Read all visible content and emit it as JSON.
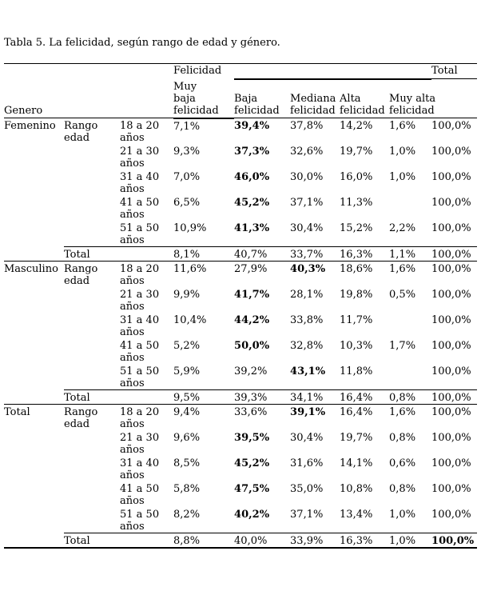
{
  "title": "Tabla 5. La felicidad, según rango de edad y género.",
  "table": {
    "group_header": "Felicidad",
    "total_header": "Total",
    "genero_header": "Genero",
    "columns": [
      "Muy\nbaja\nfelicidad",
      "Baja\nfelicidad",
      "Mediana\nfelicidad",
      "Alta\nfelicidad",
      "Muy alta\nfelicidad"
    ],
    "sections": [
      {
        "genero": "Femenino",
        "row_label": "Rango\nedad",
        "rows": [
          {
            "age": "18 a 20\naños",
            "values": [
              "7,1%",
              "39,4%",
              "37,8%",
              "14,2%",
              "1,6%",
              "100,0%"
            ],
            "bold": 1
          },
          {
            "age": "21 a 30\naños",
            "values": [
              "9,3%",
              "37,3%",
              "32,6%",
              "19,7%",
              "1,0%",
              "100,0%"
            ],
            "bold": 1
          },
          {
            "age": "31 a 40\naños",
            "values": [
              "7,0%",
              "46,0%",
              "30,0%",
              "16,0%",
              "1,0%",
              "100,0%"
            ],
            "bold": 1
          },
          {
            "age": "41 a 50\naños",
            "values": [
              "6,5%",
              "45,2%",
              "37,1%",
              "11,3%",
              "",
              "100,0%"
            ],
            "bold": 1
          },
          {
            "age": "51 a 50\naños",
            "values": [
              "10,9%",
              "41,3%",
              "30,4%",
              "15,2%",
              "2,2%",
              "100,0%"
            ],
            "bold": 1
          }
        ],
        "total": {
          "label": "Total",
          "values": [
            "8,1%",
            "40,7%",
            "33,7%",
            "16,3%",
            "1,1%",
            "100,0%"
          ],
          "bold": -1
        }
      },
      {
        "genero": "Masculino",
        "row_label": "Rango\nedad",
        "rows": [
          {
            "age": "18 a 20\naños",
            "values": [
              "11,6%",
              "27,9%",
              "40,3%",
              "18,6%",
              "1,6%",
              "100,0%"
            ],
            "bold": 2
          },
          {
            "age": "21 a 30\naños",
            "values": [
              "9,9%",
              "41,7%",
              "28,1%",
              "19,8%",
              "0,5%",
              "100,0%"
            ],
            "bold": 1
          },
          {
            "age": "31 a 40\naños",
            "values": [
              "10,4%",
              "44,2%",
              "33,8%",
              "11,7%",
              "",
              "100,0%"
            ],
            "bold": 1
          },
          {
            "age": "41 a 50\naños",
            "values": [
              "5,2%",
              "50,0%",
              "32,8%",
              "10,3%",
              "1,7%",
              "100,0%"
            ],
            "bold": 1
          },
          {
            "age": "51 a 50\naños",
            "values": [
              "5,9%",
              "39,2%",
              "43,1%",
              "11,8%",
              "",
              "100,0%"
            ],
            "bold": 2
          }
        ],
        "total": {
          "label": "Total",
          "values": [
            "9,5%",
            "39,3%",
            "34,1%",
            "16,4%",
            "0,8%",
            "100,0%"
          ],
          "bold": -1
        }
      },
      {
        "genero": "Total",
        "row_label": "Rango\nedad",
        "rows": [
          {
            "age": "18 a 20\naños",
            "values": [
              "9,4%",
              "33,6%",
              "39,1%",
              "16,4%",
              "1,6%",
              "100,0%"
            ],
            "bold": 2
          },
          {
            "age": "21 a 30\naños",
            "values": [
              "9,6%",
              "39,5%",
              "30,4%",
              "19,7%",
              "0,8%",
              "100,0%"
            ],
            "bold": 1
          },
          {
            "age": "31 a 40\naños",
            "values": [
              "8,5%",
              "45,2%",
              "31,6%",
              "14,1%",
              "0,6%",
              "100,0%"
            ],
            "bold": 1
          },
          {
            "age": "41 a 50\naños",
            "values": [
              "5,8%",
              "47,5%",
              "35,0%",
              "10,8%",
              "0,8%",
              "100,0%"
            ],
            "bold": 1
          },
          {
            "age": "51 a 50\naños",
            "values": [
              "8,2%",
              "40,2%",
              "37,1%",
              "13,4%",
              "1,0%",
              "100,0%"
            ],
            "bold": 1
          }
        ],
        "total": {
          "label": "Total",
          "values": [
            "8,8%",
            "40,0%",
            "33,9%",
            "16,3%",
            "1,0%",
            "100,0%"
          ],
          "bold": 5
        }
      }
    ]
  }
}
